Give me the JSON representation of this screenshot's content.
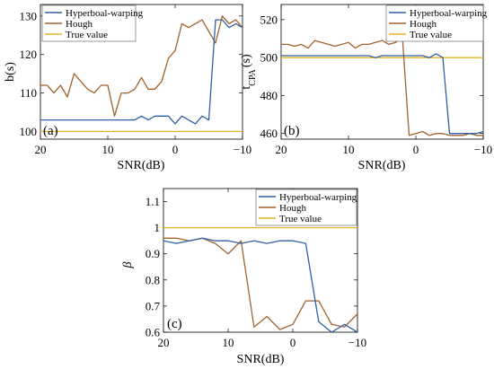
{
  "chart_data": [
    {
      "type": "line",
      "panel_label": "(a)",
      "xlabel": "SNR(dB)",
      "ylabel": "b(s)",
      "xlim": [
        20,
        -10
      ],
      "ylim": [
        98,
        133
      ],
      "xticks": [
        20,
        10,
        0,
        -10
      ],
      "xtick_labels": [
        "20",
        "10",
        "0",
        "−10"
      ],
      "yticks": [
        100,
        110,
        120,
        130
      ],
      "ytick_labels": [
        "100",
        "110",
        "120",
        "130"
      ],
      "legend_placement": "top-left",
      "series": [
        {
          "name": "Hyperboal-warping",
          "color": "#2f5fa8",
          "x": [
            20,
            19,
            18,
            17,
            16,
            15,
            14,
            13,
            12,
            11,
            10,
            9,
            8,
            7,
            6,
            5,
            4,
            3,
            2,
            1,
            0,
            -1,
            -2,
            -3,
            -4,
            -5,
            -6,
            -7,
            -8,
            -9,
            -10
          ],
          "y": [
            103,
            103,
            103,
            103,
            103,
            103,
            103,
            103,
            103,
            103,
            103,
            103,
            103,
            103,
            103,
            104,
            103,
            104,
            104,
            104,
            102,
            104,
            103,
            102,
            104,
            103,
            129,
            129,
            127,
            128,
            127
          ]
        },
        {
          "name": "Hough",
          "color": "#a0622b",
          "x": [
            20,
            19,
            18,
            17,
            16,
            15,
            14,
            13,
            12,
            11,
            10,
            9,
            8,
            7,
            6,
            5,
            4,
            3,
            2,
            1,
            0,
            -1,
            -2,
            -3,
            -4,
            -5,
            -6,
            -7,
            -8,
            -9,
            -10
          ],
          "y": [
            112,
            112,
            110,
            112,
            109,
            115,
            113,
            111,
            110,
            112,
            112,
            104,
            110,
            110,
            111,
            114,
            111,
            111,
            113,
            119,
            121,
            128,
            127,
            128,
            129,
            126,
            123,
            130,
            128,
            129,
            127
          ]
        },
        {
          "name": "True value",
          "color": "#e6b422",
          "x": [
            20,
            -10
          ],
          "y": [
            100,
            100
          ]
        }
      ]
    },
    {
      "type": "line",
      "panel_label": "(b)",
      "xlabel": "SNR(dB)",
      "ylabel": "t_CPA (s)",
      "xlim": [
        20,
        -10
      ],
      "ylim": [
        457,
        528
      ],
      "xticks": [
        20,
        10,
        0,
        -10
      ],
      "xtick_labels": [
        "20",
        "10",
        "0",
        "−10"
      ],
      "yticks": [
        460,
        480,
        500,
        520
      ],
      "ytick_labels": [
        "460",
        "480",
        "500",
        "520"
      ],
      "legend_placement": "top-right",
      "series": [
        {
          "name": "Hyperboal-warping",
          "color": "#2f5fa8",
          "x": [
            20,
            19,
            18,
            17,
            16,
            15,
            14,
            13,
            12,
            11,
            10,
            9,
            8,
            7,
            6,
            5,
            4,
            3,
            2,
            1,
            0,
            -1,
            -2,
            -3,
            -4,
            -5,
            -6,
            -7,
            -8,
            -9,
            -10
          ],
          "y": [
            501,
            501,
            501,
            501,
            501,
            501,
            501,
            501,
            501,
            501,
            501,
            501,
            501,
            501,
            500,
            501,
            501,
            501,
            501,
            501,
            501,
            501,
            500,
            502,
            500,
            460,
            460,
            460,
            460,
            460,
            461
          ]
        },
        {
          "name": "Hough",
          "color": "#a0622b",
          "x": [
            20,
            19,
            18,
            17,
            16,
            15,
            14,
            13,
            12,
            11,
            10,
            9,
            8,
            7,
            6,
            5,
            4,
            3,
            2,
            1,
            0,
            -1,
            -2,
            -3,
            -4,
            -5,
            -6,
            -7,
            -8,
            -9,
            -10
          ],
          "y": [
            507,
            507,
            506,
            507,
            505,
            509,
            508,
            507,
            506,
            507,
            508,
            505,
            507,
            507,
            508,
            509,
            507,
            508,
            511,
            459,
            460,
            461,
            459,
            460,
            460,
            459,
            459,
            459,
            460,
            459,
            459
          ]
        },
        {
          "name": "True value",
          "color": "#e6b422",
          "x": [
            20,
            -10
          ],
          "y": [
            500,
            500
          ]
        }
      ]
    },
    {
      "type": "line",
      "panel_label": "(c)",
      "xlabel": "SNR(dB)",
      "ylabel": "β",
      "xlim": [
        20,
        -10
      ],
      "ylim": [
        0.6,
        1.15
      ],
      "xticks": [
        20,
        10,
        0,
        -10
      ],
      "xtick_labels": [
        "20",
        "10",
        "0",
        "−10"
      ],
      "yticks": [
        0.6,
        0.7,
        0.8,
        0.9,
        1.0,
        1.1
      ],
      "ytick_labels": [
        "0.6",
        "0.7",
        "0.8",
        "0.9",
        "1",
        "1.1"
      ],
      "legend_placement": "top-right",
      "series": [
        {
          "name": "Hyperboal-warping",
          "color": "#2f5fa8",
          "x": [
            20,
            18,
            16,
            14,
            12,
            10,
            8,
            6,
            4,
            2,
            0,
            -2,
            -4,
            -6,
            -8,
            -10
          ],
          "y": [
            0.95,
            0.94,
            0.95,
            0.96,
            0.95,
            0.95,
            0.94,
            0.95,
            0.94,
            0.95,
            0.95,
            0.94,
            0.64,
            0.6,
            0.63,
            0.6
          ]
        },
        {
          "name": "Hough",
          "color": "#a0622b",
          "x": [
            20,
            18,
            16,
            14,
            12,
            10,
            8,
            6,
            4,
            2,
            0,
            -2,
            -4,
            -6,
            -8,
            -10
          ],
          "y": [
            0.96,
            0.96,
            0.95,
            0.96,
            0.94,
            0.9,
            0.95,
            0.62,
            0.66,
            0.61,
            0.63,
            0.72,
            0.72,
            0.63,
            0.62,
            0.67
          ]
        },
        {
          "name": "True value",
          "color": "#e6b422",
          "x": [
            20,
            -10
          ],
          "y": [
            1.0,
            1.0
          ]
        }
      ]
    }
  ]
}
